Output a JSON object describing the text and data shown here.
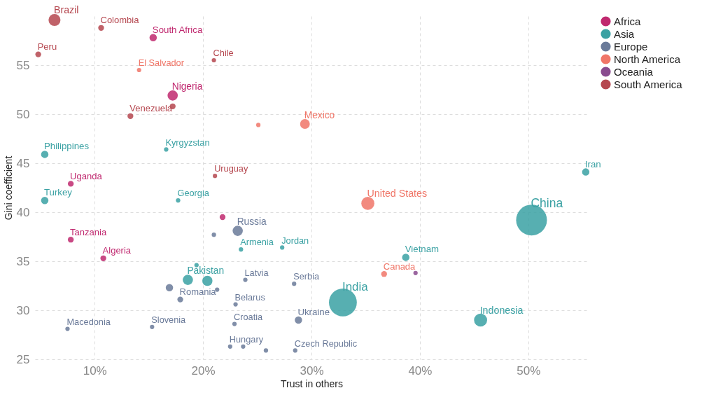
{
  "chart_data": {
    "type": "bubble",
    "xlabel": "Trust in others",
    "ylabel": "Gini coefficient",
    "xlim": [
      4.5,
      55.5
    ],
    "ylim": [
      25,
      60
    ],
    "xticks": [
      {
        "value": 10,
        "label": "10%"
      },
      {
        "value": 20,
        "label": "20%"
      },
      {
        "value": 30,
        "label": "30%"
      },
      {
        "value": 40,
        "label": "40%"
      },
      {
        "value": 50,
        "label": "50%"
      }
    ],
    "yticks": [
      25,
      30,
      35,
      40,
      45,
      50,
      55
    ],
    "grid": true,
    "legend": "top right",
    "series": [
      {
        "name": "Africa",
        "color": "#c0296f",
        "x": [
          15.4,
          17.2,
          7.8,
          21.8,
          7.8,
          10.8
        ],
        "values": [
          57.8,
          51.9,
          42.9,
          39.5,
          37.2,
          35.3
        ],
        "sizes": [
          0.057,
          0.11,
          0.036,
          0.036,
          0.036,
          0.036
        ],
        "value_labels": [
          "South Africa",
          "Nigeria",
          "Uganda",
          null,
          "Tanzania",
          "Algeria"
        ]
      },
      {
        "name": "Asia",
        "color": "#3aa1a3",
        "x": [
          5.4,
          16.6,
          5.4,
          17.7,
          55.3,
          50.3,
          23.5,
          27.3,
          38.7,
          19.4,
          18.6,
          20.4,
          32.9,
          45.6
        ],
        "values": [
          45.9,
          46.4,
          41.2,
          41.2,
          44.1,
          39.2,
          36.2,
          36.4,
          35.4,
          34.6,
          33.1,
          33.0,
          30.8,
          29.0
        ],
        "sizes": [
          0.057,
          0.02,
          0.057,
          0.02,
          0.057,
          1,
          0.02,
          0.02,
          0.057,
          0.02,
          0.11,
          0.11,
          0.82,
          0.18
        ],
        "value_labels": [
          "Philippines",
          "Kyrgyzstan",
          "Turkey",
          "Georgia",
          "Iran",
          "China",
          "Armenia",
          "Jordan",
          "Vietnam",
          null,
          "Pakistan",
          null,
          "India",
          "Indonesia"
        ]
      },
      {
        "name": "Europe",
        "color": "#6a7a99",
        "x": [
          21.0,
          23.2,
          23.9,
          28.4,
          16.9,
          21.3,
          17.9,
          23.0,
          28.8,
          22.9,
          7.5,
          15.3,
          22.5,
          23.7,
          25.8,
          28.5
        ],
        "values": [
          37.7,
          38.1,
          33.1,
          32.7,
          32.3,
          32.1,
          31.1,
          30.6,
          29.0,
          28.6,
          28.1,
          28.3,
          26.3,
          26.3,
          25.9,
          25.9
        ],
        "sizes": [
          0.02,
          0.11,
          0.02,
          0.02,
          0.057,
          0.02,
          0.036,
          0.02,
          0.057,
          0.02,
          0.02,
          0.02,
          0.02,
          0.02,
          0.02,
          0.02
        ],
        "value_labels": [
          null,
          "Russia",
          "Latvia",
          "Serbia",
          null,
          null,
          "Romania",
          "Belarus",
          "Ukraine",
          "Croatia",
          "Macedonia",
          "Slovenia",
          "Hungary",
          null,
          null,
          "Czech Republic"
        ]
      },
      {
        "name": "North America",
        "color": "#f07668",
        "x": [
          14.1,
          25.1,
          29.4,
          35.2,
          36.7
        ],
        "values": [
          54.5,
          48.9,
          49.0,
          40.9,
          33.7
        ],
        "sizes": [
          0.02,
          0.02,
          0.1,
          0.18,
          0.036
        ],
        "value_labels": [
          "El Salvador",
          null,
          "Mexico",
          "United States",
          "Canada"
        ]
      },
      {
        "name": "Oceania",
        "color": "#8a4b8f",
        "x": [
          39.6
        ],
        "values": [
          33.8
        ],
        "sizes": [
          0.02
        ],
        "value_labels": [
          null
        ]
      },
      {
        "name": "South America",
        "color": "#b5474f",
        "x": [
          6.3,
          10.6,
          4.8,
          21.0,
          17.2,
          13.3,
          21.1
        ],
        "values": [
          59.6,
          58.8,
          56.1,
          55.5,
          50.8,
          49.8,
          43.7
        ],
        "sizes": [
          0.15,
          0.036,
          0.036,
          0.02,
          0.036,
          0.036,
          0.02
        ],
        "value_labels": [
          "Brazil",
          "Colombia",
          "Peru",
          "Chile",
          null,
          "Venezuela",
          "Uruguay"
        ]
      }
    ]
  }
}
